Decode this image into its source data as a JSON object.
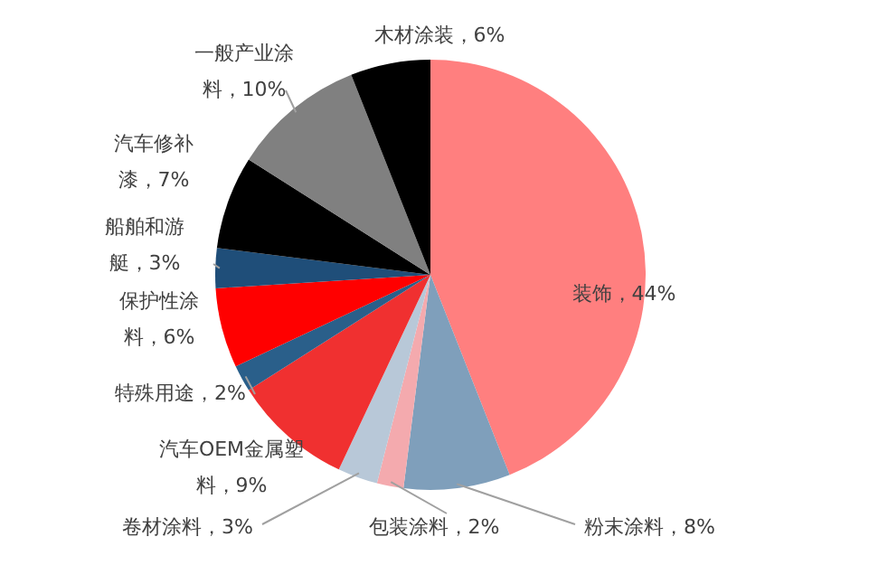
{
  "chart_data": {
    "type": "pie",
    "categories": [
      "装饰",
      "粉末涂料",
      "包装涂料",
      "卷材涂料",
      "汽车OEM金属塑料",
      "特殊用途",
      "保护性涂料",
      "船舶和游艇",
      "汽车修补漆",
      "一般产业涂料",
      "木材涂装"
    ],
    "values": [
      44,
      8,
      2,
      3,
      9,
      2,
      6,
      3,
      7,
      10,
      6
    ],
    "value_labels": [
      "，44%",
      "，8%",
      "，2%",
      "，3%",
      "，9%",
      "，2%",
      "，6%",
      "，3%",
      "，7%",
      "，10%",
      "，6%"
    ],
    "colors": [
      "#ff7f7f",
      "#7f9fbb",
      "#f4aaae",
      "#b8c8d8",
      "#f03030",
      "#2a5f8a",
      "#ff0000",
      "#1f4e79",
      "#000000",
      "#808080",
      "#000000"
    ],
    "legend": false
  }
}
